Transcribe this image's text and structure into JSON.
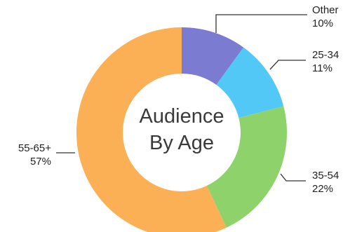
{
  "chart_data": {
    "type": "pie",
    "center_title": [
      "Audience",
      "By Age"
    ],
    "slices": [
      {
        "label": "Other",
        "percent_text": "10%",
        "value": 10,
        "color": "#7a7bd1"
      },
      {
        "label": "25-34",
        "percent_text": "11%",
        "value": 11,
        "color": "#52c8f7"
      },
      {
        "label": "35-54",
        "percent_text": "22%",
        "value": 22,
        "color": "#8dd26b"
      },
      {
        "label": "55-65+",
        "percent_text": "57%",
        "value": 57,
        "color": "#fcb055"
      }
    ],
    "start_at": "top",
    "direction": "clockwise",
    "hole": true
  }
}
